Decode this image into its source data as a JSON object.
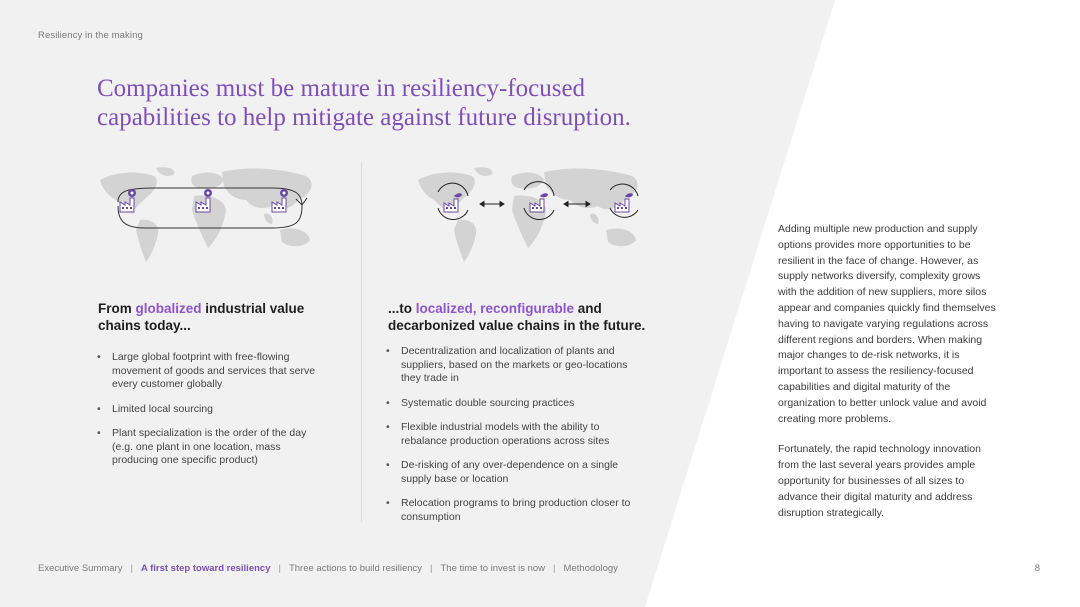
{
  "header": {
    "running_head": "Resiliency in the making"
  },
  "title": {
    "line1": "Companies must be mature in resiliency-focused",
    "line2": "capabilities to help mitigate against future disruption."
  },
  "left": {
    "heading_pre": "From ",
    "heading_accent": "globalized",
    "heading_post": " industrial value chains today...",
    "bullets": [
      "Large global footprint with free-flowing movement of goods and services that serve every customer globally",
      "Limited local sourcing",
      "Plant specialization is the order of the day (e.g. one plant in one location, mass producing one specific product)"
    ]
  },
  "right": {
    "heading_pre": "...to ",
    "heading_accent": "localized, reconfigurable",
    "heading_post": " and decarbonized value chains in the future.",
    "bullets": [
      "Decentralization and localization of plants and suppliers, based on the markets or geo-locations they trade in",
      "Systematic double sourcing practices",
      "Flexible industrial models with the ability to rebalance production operations across sites",
      "De-risking of any over-dependence on a single supply base or location",
      "Relocation programs to bring production closer to consumption"
    ]
  },
  "side": {
    "para1": "Adding multiple new production and supply options provides more opportunities to be resilient in the face of change. However, as supply networks diversify, complexity grows with the addition of new suppliers, more silos appear and companies quickly find themselves having to navigate varying regulations across different regions and borders. When making major changes to de-risk networks, it is important to assess the resiliency-focused capabilities and digital maturity of the organization to better unlock value and avoid creating more problems.",
    "para2": "Fortunately, the rapid technology innovation from the last several years provides ample opportunity for businesses of all sizes to advance their digital maturity and address disruption strategically."
  },
  "footer": {
    "items": [
      "Executive Summary",
      "A first step toward resiliency",
      "Three actions to build resiliency",
      "The time to invest is now",
      "Methodology"
    ],
    "page_number": "8"
  },
  "colors": {
    "accent": "#7e4fb5",
    "accent_light": "#8d55c8",
    "panel": "#f1f1f2",
    "map": "#d3d3d3"
  },
  "icons": [
    "factory-icon",
    "gear-icon",
    "leaf-icon",
    "cycle-arrows-icon",
    "double-arrow-icon"
  ]
}
